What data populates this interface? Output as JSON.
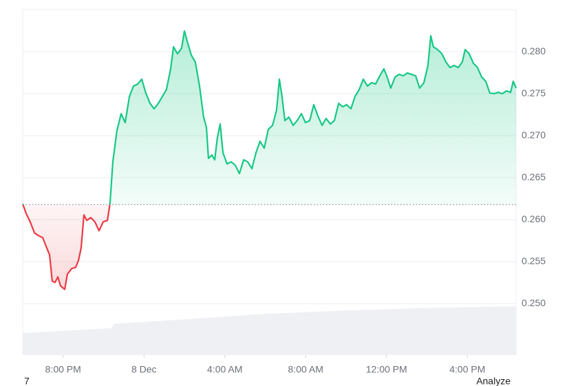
{
  "chart_data": {
    "type": "line",
    "x": [
      0,
      0.17,
      0.37,
      0.58,
      0.78,
      0.99,
      1.19,
      1.33,
      1.46,
      1.6,
      1.74,
      1.87,
      2.08,
      2.21,
      2.42,
      2.62,
      2.76,
      2.89,
      3.03,
      3.17,
      3.37,
      3.57,
      3.78,
      3.98,
      4.19,
      4.32,
      4.46,
      4.66,
      4.87,
      5.07,
      5.28,
      5.48,
      5.69,
      5.89,
      6.09,
      6.3,
      6.5,
      6.71,
      6.91,
      7.11,
      7.32,
      7.46,
      7.66,
      7.86,
      8.0,
      8.14,
      8.34,
      8.54,
      8.75,
      8.95,
      9.09,
      9.19,
      9.36,
      9.5,
      9.63,
      9.77,
      9.91,
      10.11,
      10.31,
      10.52,
      10.72,
      10.93,
      11.13,
      11.34,
      11.54,
      11.74,
      11.95,
      12.15,
      12.36,
      12.56,
      12.7,
      12.83,
      12.97,
      13.17,
      13.38,
      13.58,
      13.79,
      13.99,
      14.2,
      14.4,
      14.6,
      14.81,
      15.01,
      15.22,
      15.42,
      15.63,
      15.83,
      16.03,
      16.24,
      16.44,
      16.65,
      16.85,
      17.06,
      17.26,
      17.46,
      17.67,
      17.87,
      18.01,
      18.21,
      18.42,
      18.62,
      18.83,
      19.03,
      19.23,
      19.44,
      19.64,
      19.85,
      20.05,
      20.19,
      20.32,
      20.53,
      20.74,
      20.94,
      21.14,
      21.34,
      21.55,
      21.75,
      21.89,
      22.09,
      22.3,
      22.5,
      22.71,
      22.91,
      23.11,
      23.32,
      23.52,
      23.73,
      23.93,
      24.14,
      24.27,
      24.41
    ],
    "values": [
      0.26189,
      0.26074,
      0.25975,
      0.25844,
      0.25811,
      0.25787,
      0.25664,
      0.25582,
      0.2527,
      0.25254,
      0.2532,
      0.25213,
      0.25172,
      0.25352,
      0.25418,
      0.25434,
      0.25516,
      0.25664,
      0.26057,
      0.25992,
      0.26025,
      0.25975,
      0.25869,
      0.25975,
      0.25992,
      0.26197,
      0.26689,
      0.27057,
      0.27262,
      0.27156,
      0.27467,
      0.2759,
      0.27615,
      0.27672,
      0.27508,
      0.27385,
      0.2732,
      0.27385,
      0.27467,
      0.27549,
      0.27795,
      0.28057,
      0.27975,
      0.28041,
      0.28246,
      0.28123,
      0.27959,
      0.27877,
      0.2759,
      0.27221,
      0.27098,
      0.2673,
      0.2677,
      0.26713,
      0.26975,
      0.27139,
      0.26795,
      0.26664,
      0.26689,
      0.26648,
      0.26549,
      0.26713,
      0.26689,
      0.26607,
      0.26795,
      0.26934,
      0.26852,
      0.27074,
      0.27123,
      0.27303,
      0.27672,
      0.27467,
      0.2718,
      0.27221,
      0.27123,
      0.2718,
      0.27262,
      0.27156,
      0.2718,
      0.27369,
      0.27238,
      0.27123,
      0.27205,
      0.27139,
      0.2718,
      0.27385,
      0.27344,
      0.27369,
      0.2732,
      0.27467,
      0.27549,
      0.27672,
      0.2759,
      0.27631,
      0.27615,
      0.27713,
      0.27795,
      0.27713,
      0.27566,
      0.27697,
      0.2773,
      0.27713,
      0.27746,
      0.2773,
      0.27713,
      0.27566,
      0.27631,
      0.27836,
      0.28189,
      0.28057,
      0.28025,
      0.27975,
      0.27877,
      0.27811,
      0.27836,
      0.27811,
      0.27877,
      0.28025,
      0.27975,
      0.27861,
      0.27811,
      0.27697,
      0.27648,
      0.27508,
      0.275,
      0.27516,
      0.275,
      0.27533,
      0.27516,
      0.27648,
      0.27566
    ],
    "baseline": 0.2618,
    "up_color": "#16c784",
    "down_color": "#ea3943",
    "volume": {
      "color": "#eef0f3",
      "x": [
        0,
        1.5,
        4.4,
        4.5,
        9,
        12,
        16,
        20,
        24.41
      ],
      "values": [
        0.2465,
        0.2467,
        0.2471,
        0.2476,
        0.2483,
        0.2488,
        0.2492,
        0.2495,
        0.2497
      ]
    },
    "xlim": [
      0,
      24.41
    ],
    "ylim": [
      0.2439,
      0.285
    ],
    "xticks": [
      {
        "value": 2,
        "label": "8:00 PM"
      },
      {
        "value": 6,
        "label": "8 Dec"
      },
      {
        "value": 10,
        "label": "4:00 AM"
      },
      {
        "value": 14,
        "label": "8:00 AM"
      },
      {
        "value": 18,
        "label": "12:00 PM"
      },
      {
        "value": 22,
        "label": "4:00 PM"
      }
    ],
    "yticks": [
      {
        "value": 0.25,
        "label": "0.250"
      },
      0.255,
      {
        "value": 0.26,
        "label": "0.260"
      },
      0.265,
      {
        "value": 0.27,
        "label": "0.270"
      },
      0.275,
      {
        "value": 0.28,
        "label": "0.280"
      }
    ],
    "grid": true,
    "footer_left": "7",
    "footer_right": "Analyze"
  }
}
